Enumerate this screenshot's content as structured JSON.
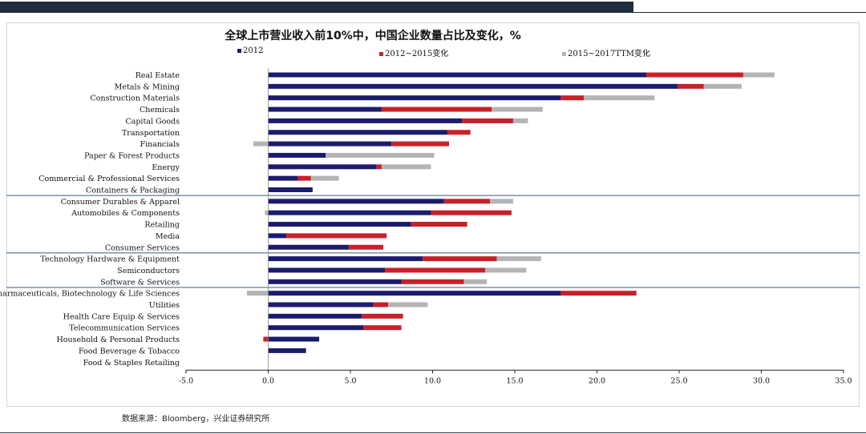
{
  "chart_data": {
    "type": "bar",
    "orientation": "horizontal",
    "stacked": true,
    "title": "全球上市营业收入前10%中，中国企业数量占比及变化，%",
    "categories": [
      "Real Estate",
      "Metals & Mining",
      "Construction Materials",
      "Chemicals",
      "Capital Goods",
      "Transportation",
      "Financials",
      "Paper & Forest Products",
      "Energy",
      "Commercial & Professional Services",
      "Containers & Packaging",
      "Consumer Durables & Apparel",
      "Automobiles & Components",
      "Retailing",
      "Media",
      "Consumer Services",
      "Technology Hardware & Equipment",
      "Semiconductors",
      "Software & Services",
      "Pharmaceuticals, Biotechnology & Life Sciences",
      "Utilities",
      "Health Care Equip & Services",
      "Telecommunication Services",
      "Household & Personal Products",
      "Food Beverage & Tobacco",
      "Food & Staples Retailing"
    ],
    "series": [
      {
        "name": "2012",
        "color": "#1c1c6e",
        "values": [
          23.0,
          24.9,
          17.8,
          6.9,
          11.8,
          10.9,
          7.5,
          3.5,
          6.6,
          1.8,
          2.7,
          10.7,
          9.9,
          8.7,
          1.1,
          4.9,
          9.4,
          7.1,
          8.1,
          17.8,
          6.4,
          5.7,
          5.8,
          3.1,
          2.3,
          0
        ]
      },
      {
        "name": "2012~2015变化",
        "color": "#c8202a",
        "values": [
          5.9,
          1.6,
          1.4,
          6.7,
          3.1,
          1.4,
          3.5,
          0,
          0.3,
          0.8,
          0,
          2.8,
          4.9,
          3.4,
          6.1,
          2.1,
          4.5,
          6.1,
          3.8,
          4.6,
          0.9,
          2.5,
          2.3,
          -0.3,
          0,
          0
        ]
      },
      {
        "name": "2015~2017TTM变化",
        "color": "#b4b4b4",
        "values": [
          1.9,
          2.3,
          4.3,
          3.1,
          0.9,
          0,
          -0.9,
          6.6,
          3.0,
          1.7,
          0,
          1.4,
          -0.2,
          0,
          0,
          0,
          2.7,
          2.5,
          1.4,
          -1.3,
          2.4,
          0,
          0,
          0,
          0,
          0
        ]
      }
    ],
    "xlim": [
      -5.0,
      35.0
    ],
    "xticks": [
      "-5.0",
      "0.0",
      "5.0",
      "10.0",
      "15.0",
      "20.0",
      "25.0",
      "30.0",
      "35.0"
    ],
    "group_separators_after": [
      10,
      15,
      18
    ],
    "legend_position": "top",
    "grid": false
  },
  "source": "数据来源：Bloomberg，兴业证券研究所"
}
